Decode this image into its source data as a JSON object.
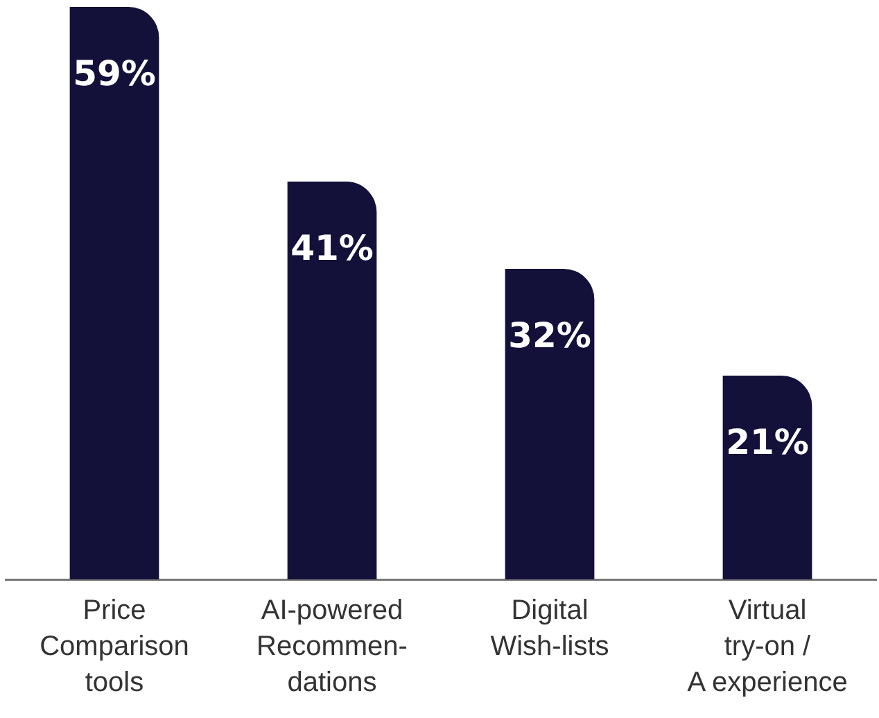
{
  "chart_data": {
    "type": "bar",
    "categories": [
      "Price\nComparison\ntools",
      "AI-powered\nRecommen-\ndations",
      "Digital\nWish-lists",
      "Virtual\ntry-on /\nA experience"
    ],
    "values": [
      59,
      41,
      32,
      21
    ],
    "color": "#13113a",
    "data_labels": true,
    "value_labels": [
      "59%",
      "41%",
      "32%",
      "21%"
    ],
    "tick_labels": "x",
    "grid": false,
    "legend": false
  }
}
